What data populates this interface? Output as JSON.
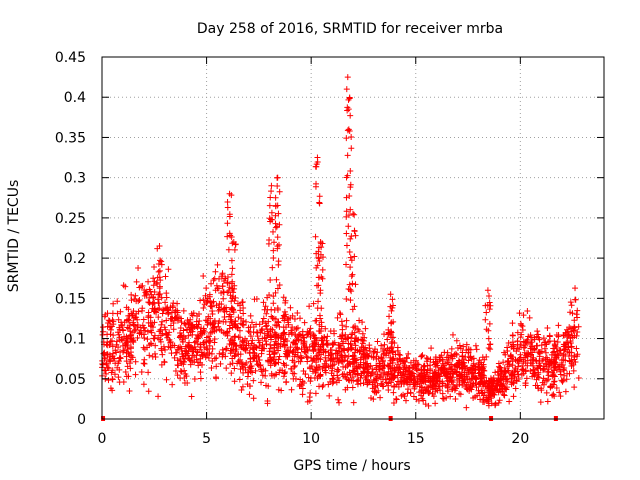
{
  "chart_data": {
    "type": "scatter",
    "title": "Day 258 of 2016, SRMTID for receiver mrba",
    "xlabel": "GPS time / hours",
    "ylabel": "SRMTID / TECUs",
    "xlim": [
      0,
      24
    ],
    "ylim": [
      0,
      0.45
    ],
    "xticks": [
      0,
      5,
      10,
      15,
      20
    ],
    "yticks": [
      0,
      0.05,
      0.1,
      0.15,
      0.2,
      0.25,
      0.3,
      0.35,
      0.4,
      0.45
    ],
    "xtick_labels": [
      "0",
      "5",
      "10",
      "15",
      "20"
    ],
    "ytick_labels": [
      "0",
      "0.05",
      "0.1",
      "0.15",
      "0.2",
      "0.25",
      "0.3",
      "0.35",
      "0.4",
      "0.45"
    ],
    "grid": true,
    "marker": "+",
    "color": "#ff0000",
    "series": [
      {
        "name": "SRMTID",
        "baseline": [
          [
            0.0,
            0.09
          ],
          [
            0.5,
            0.095
          ],
          [
            1.0,
            0.1
          ],
          [
            1.5,
            0.11
          ],
          [
            2.0,
            0.115
          ],
          [
            2.5,
            0.12
          ],
          [
            3.0,
            0.12
          ],
          [
            3.5,
            0.105
          ],
          [
            4.0,
            0.08
          ],
          [
            4.5,
            0.09
          ],
          [
            5.0,
            0.11
          ],
          [
            5.5,
            0.125
          ],
          [
            6.0,
            0.13
          ],
          [
            6.5,
            0.1
          ],
          [
            7.0,
            0.085
          ],
          [
            7.5,
            0.09
          ],
          [
            8.0,
            0.1
          ],
          [
            8.5,
            0.1
          ],
          [
            9.0,
            0.085
          ],
          [
            9.5,
            0.08
          ],
          [
            10.0,
            0.085
          ],
          [
            10.5,
            0.08
          ],
          [
            11.0,
            0.075
          ],
          [
            11.5,
            0.08
          ],
          [
            12.0,
            0.075
          ],
          [
            12.5,
            0.07
          ],
          [
            13.0,
            0.065
          ],
          [
            13.5,
            0.07
          ],
          [
            14.0,
            0.06
          ],
          [
            14.5,
            0.055
          ],
          [
            15.0,
            0.05
          ],
          [
            15.5,
            0.05
          ],
          [
            16.0,
            0.05
          ],
          [
            16.5,
            0.055
          ],
          [
            17.0,
            0.06
          ],
          [
            17.5,
            0.06
          ],
          [
            18.0,
            0.055
          ],
          [
            18.5,
            0.035
          ],
          [
            19.0,
            0.045
          ],
          [
            19.5,
            0.065
          ],
          [
            20.0,
            0.085
          ],
          [
            20.5,
            0.08
          ],
          [
            21.0,
            0.07
          ],
          [
            21.5,
            0.065
          ],
          [
            22.0,
            0.075
          ],
          [
            22.5,
            0.095
          ],
          [
            22.8,
            0.1
          ]
        ],
        "bursts": [
          [
            2.75,
            0.215
          ],
          [
            6.1,
            0.28
          ],
          [
            6.3,
            0.22
          ],
          [
            8.1,
            0.29
          ],
          [
            8.4,
            0.3
          ],
          [
            10.3,
            0.325
          ],
          [
            10.45,
            0.22
          ],
          [
            11.75,
            0.425
          ],
          [
            11.8,
            0.36
          ],
          [
            12.0,
            0.255
          ],
          [
            13.8,
            0.155
          ],
          [
            18.45,
            0.16
          ]
        ],
        "zero_points": [
          [
            0.05,
            0.0
          ],
          [
            13.8,
            0.0
          ],
          [
            18.6,
            0.0
          ],
          [
            21.7,
            0.0
          ]
        ],
        "point_count": 2600
      }
    ]
  }
}
